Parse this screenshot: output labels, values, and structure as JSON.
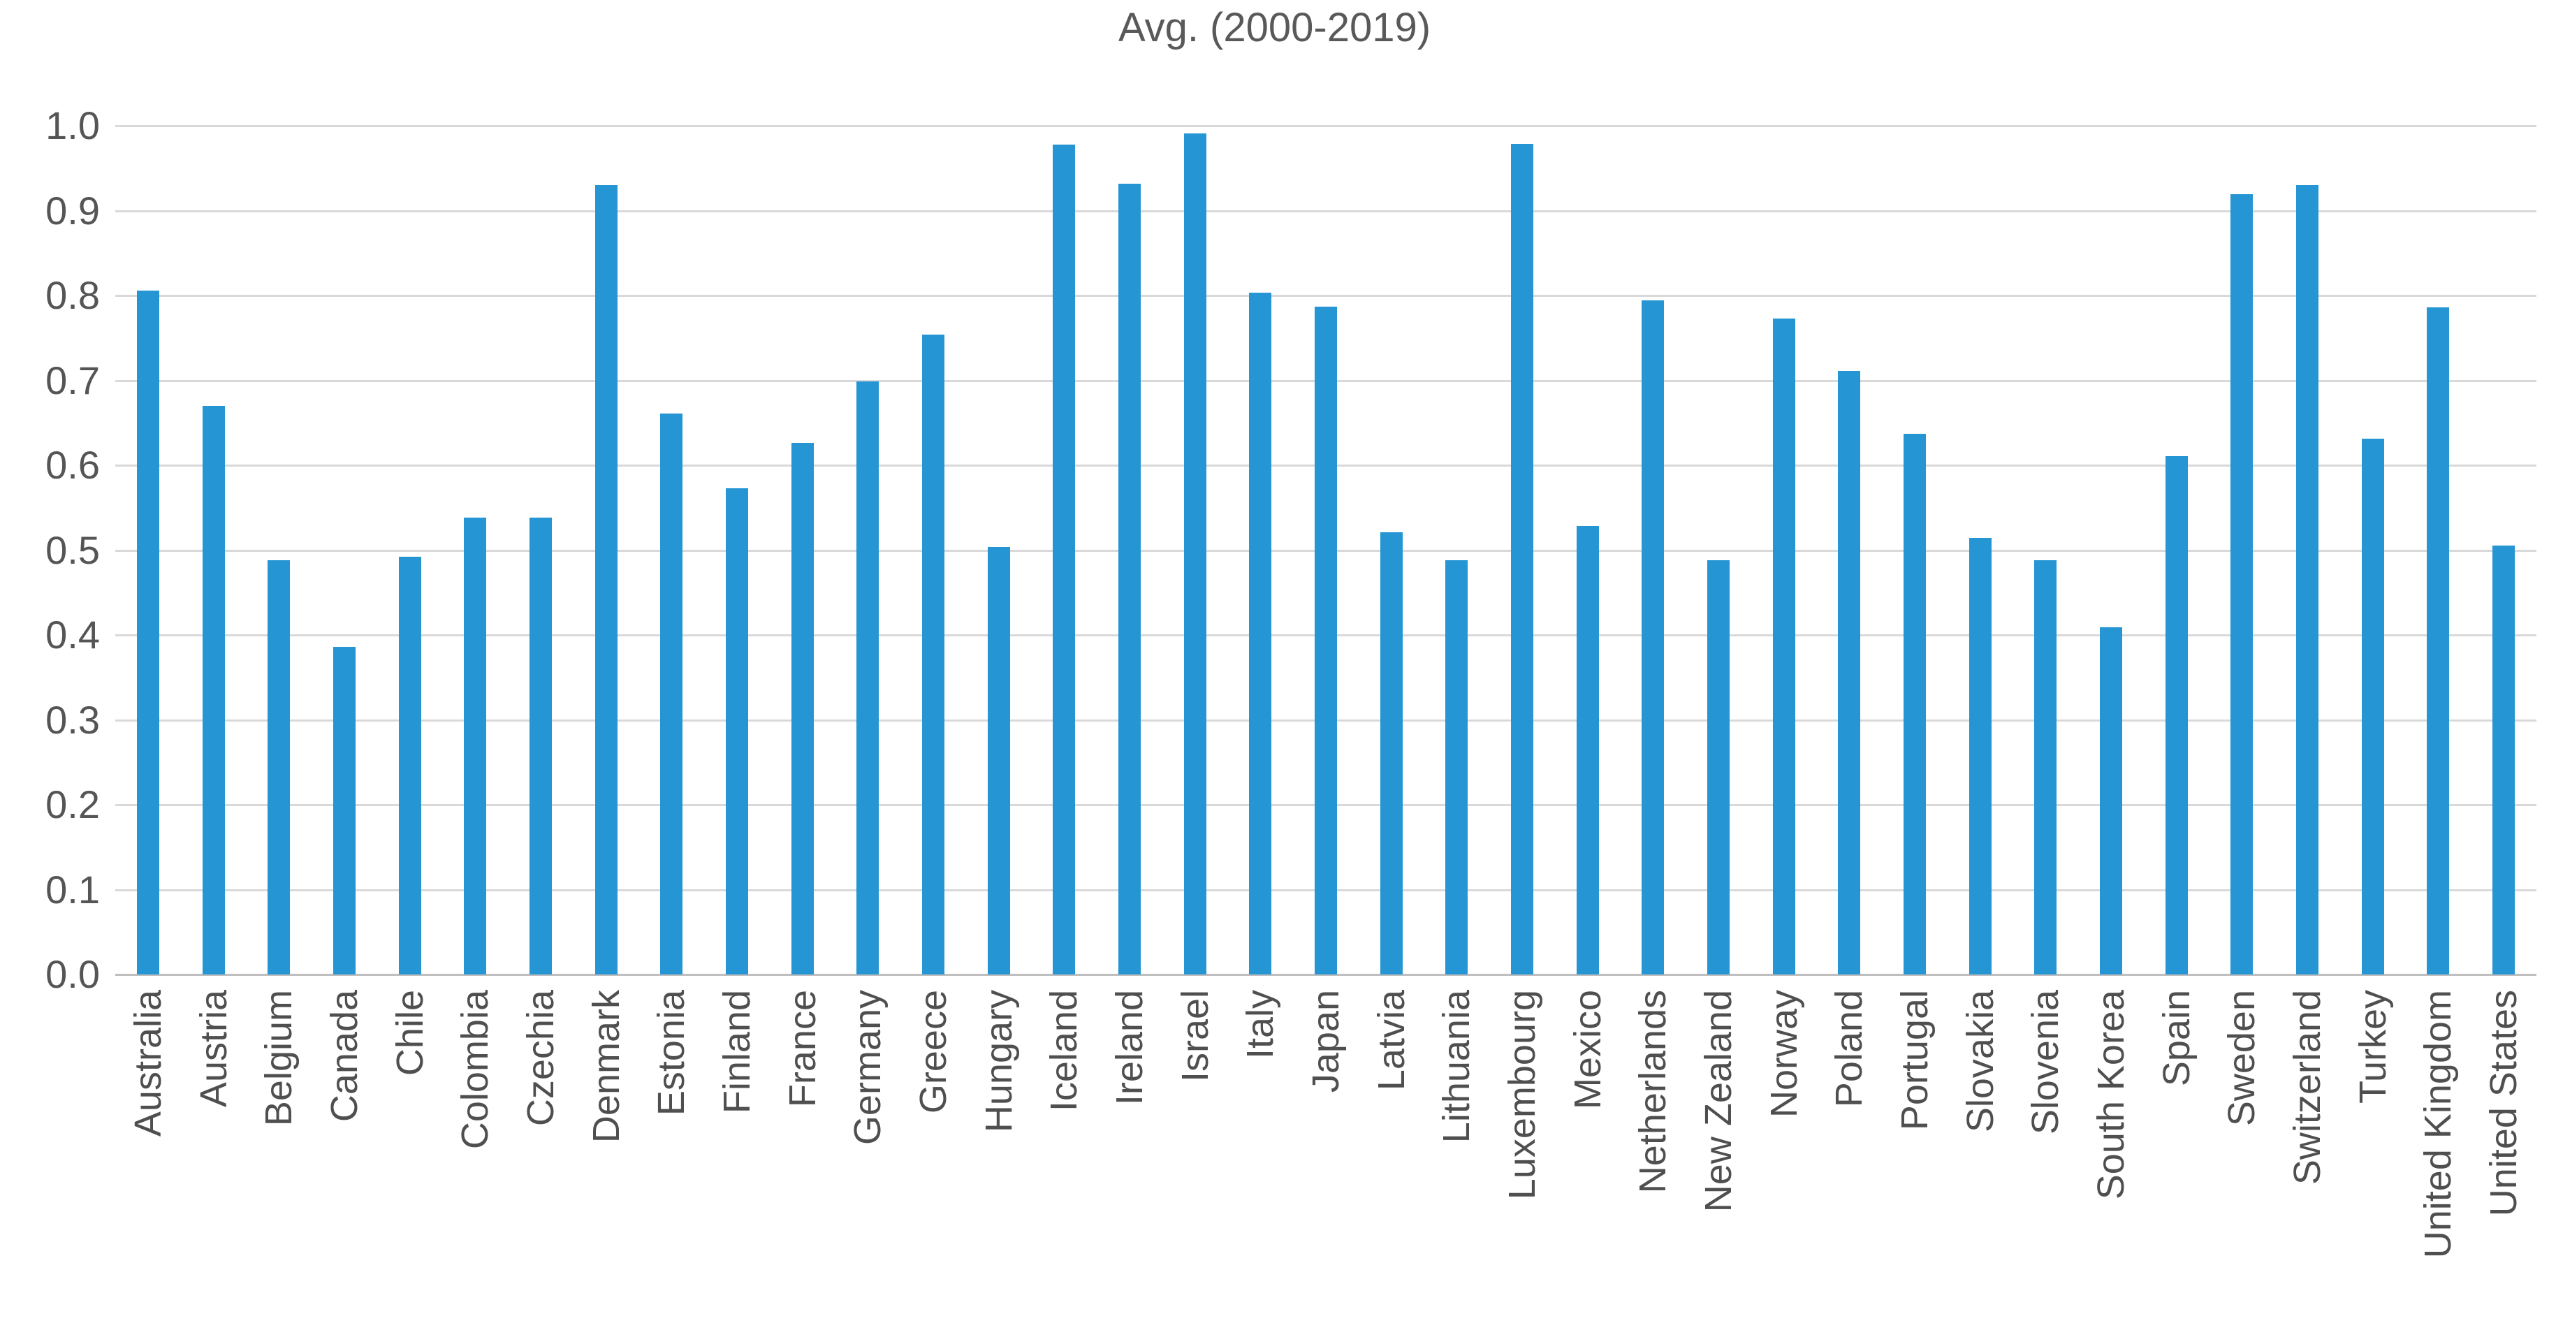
{
  "chart_data": {
    "type": "bar",
    "title": "Avg. (2000-2019)",
    "xlabel": "",
    "ylabel": "",
    "ylim": [
      0.0,
      1.0
    ],
    "ytick_step": 0.1,
    "ytick_labels": [
      "1.0",
      "0.9",
      "0.8",
      "0.7",
      "0.6",
      "0.5",
      "0.4",
      "0.3",
      "0.2",
      "0.1",
      "0.0"
    ],
    "grid": "horizontal",
    "legend": "none",
    "bar_color": "#2595d3",
    "gridline_color": "#d9d9d9",
    "axis_line_color": "#bfbfbf",
    "text_color": "#595959",
    "categories": [
      "Australia",
      "Austria",
      "Belgium",
      "Canada",
      "Chile",
      "Colombia",
      "Czechia",
      "Denmark",
      "Estonia",
      "Finland",
      "France",
      "Germany",
      "Greece",
      "Hungary",
      "Iceland",
      "Ireland",
      "Israel",
      "Italy",
      "Japan",
      "Latvia",
      "Lithuania",
      "Luxembourg",
      "Mexico",
      "Netherlands",
      "New Zealand",
      "Norway",
      "Poland",
      "Portugal",
      "Slovakia",
      "Slovenia",
      "South Korea",
      "Spain",
      "Sweden",
      "Switzerland",
      "Turkey",
      "United Kingdom",
      "United States"
    ],
    "values": [
      0.806,
      0.67,
      0.488,
      0.386,
      0.492,
      0.538,
      0.538,
      0.93,
      0.661,
      0.573,
      0.626,
      0.699,
      0.754,
      0.504,
      0.978,
      0.932,
      0.991,
      0.803,
      0.787,
      0.521,
      0.488,
      0.979,
      0.528,
      0.794,
      0.488,
      0.773,
      0.711,
      0.637,
      0.514,
      0.488,
      0.409,
      0.611,
      0.919,
      0.93,
      0.631,
      0.786,
      0.505
    ]
  }
}
